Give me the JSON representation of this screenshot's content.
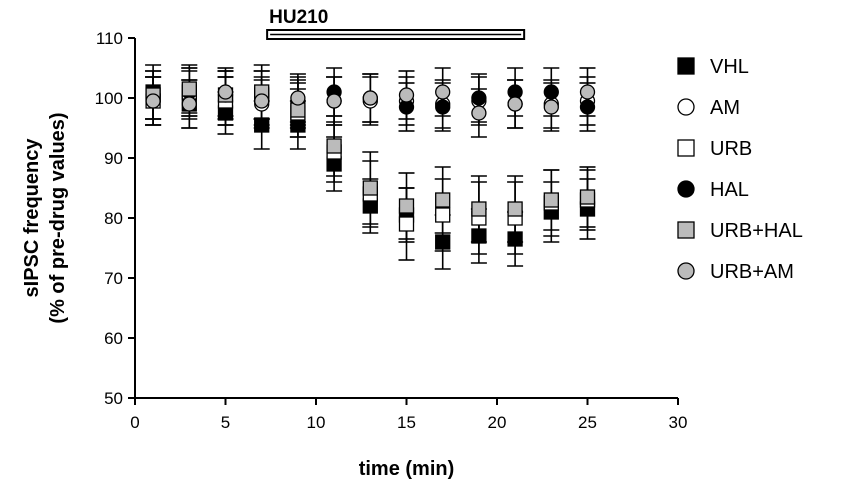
{
  "chart_data": {
    "type": "scatter",
    "xlabel": "time (min)",
    "ylabel_lines": [
      "sIPSC frequency",
      "(% of pre-drug values)"
    ],
    "xlim": [
      0,
      30
    ],
    "ylim": [
      50,
      110
    ],
    "xticks": [
      0,
      5,
      10,
      15,
      20,
      25,
      30
    ],
    "yticks": [
      50,
      60,
      70,
      80,
      90,
      100,
      110
    ],
    "grid": false,
    "legend_position": "right",
    "drug_bar": {
      "label": "HU210",
      "start": 7.3,
      "end": 21.5
    },
    "x": [
      1,
      3,
      5,
      7,
      9,
      11,
      13,
      15,
      17,
      19,
      21,
      23,
      25
    ],
    "series": [
      {
        "name": "VHL",
        "marker": "square",
        "fill": "#000000",
        "values": [
          101,
          99,
          97.5,
          95.5,
          95.5,
          89,
          82,
          80.5,
          76,
          77,
          76.5,
          81,
          81.5
        ],
        "errors": [
          4.5,
          4,
          3.5,
          4,
          4,
          4.5,
          4.5,
          4.5,
          4.5,
          4.5,
          4.5,
          5,
          5
        ]
      },
      {
        "name": "AM",
        "marker": "circle",
        "fill": "#ffffff",
        "values": [
          99.5,
          100.5,
          99.5,
          99,
          99,
          99.5,
          99.5,
          99.5,
          99,
          99.5,
          99,
          99,
          99.5
        ],
        "errors": [
          4,
          4,
          4,
          4,
          4,
          4,
          4,
          4,
          4,
          4,
          4,
          4,
          4
        ]
      },
      {
        "name": "URB",
        "marker": "square",
        "fill": "#ffffff",
        "values": [
          99.5,
          101,
          99.5,
          100.5,
          97.5,
          91,
          84,
          79,
          80.5,
          80,
          80,
          82.5,
          83
        ],
        "errors": [
          4,
          4,
          4,
          4,
          4,
          5,
          5.5,
          6,
          6,
          6,
          6,
          5.5,
          5
        ]
      },
      {
        "name": "HAL",
        "marker": "circle",
        "fill": "#000000",
        "values": [
          100.5,
          101,
          100.5,
          100.5,
          99.5,
          101,
          100,
          98.5,
          98.5,
          100,
          101,
          101,
          98.5
        ],
        "errors": [
          4,
          4,
          4,
          4,
          4,
          4,
          4,
          4,
          4,
          4,
          4,
          4,
          4
        ]
      },
      {
        "name": "URB+HAL",
        "marker": "square",
        "fill": "#bbbbbb",
        "values": [
          100.5,
          101.5,
          100.5,
          101,
          98,
          92,
          85,
          82,
          83,
          81.5,
          81.5,
          83,
          83.5
        ],
        "errors": [
          4,
          4,
          4,
          4.5,
          4.5,
          5,
          6,
          5.5,
          5.5,
          5.5,
          5.5,
          5,
          5
        ]
      },
      {
        "name": "URB+AM",
        "marker": "circle",
        "fill": "#bbbbbb",
        "values": [
          99.5,
          99,
          101,
          99.5,
          100,
          99.5,
          100,
          100.5,
          101,
          97.5,
          99,
          98.5,
          101
        ],
        "errors": [
          4,
          4,
          4,
          4,
          4,
          4,
          4,
          4,
          4,
          4,
          4,
          4,
          4
        ]
      }
    ]
  }
}
